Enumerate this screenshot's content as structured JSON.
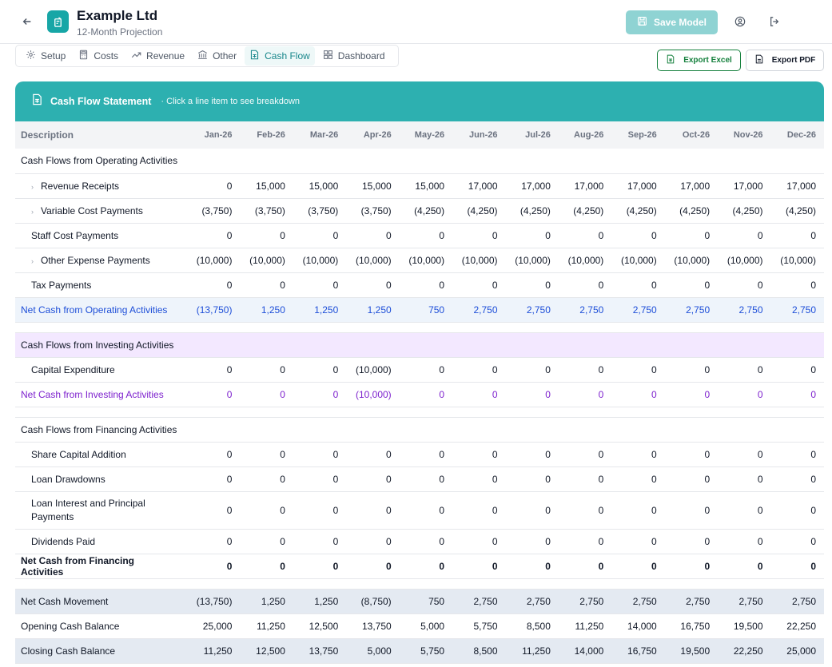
{
  "header": {
    "title": "Example Ltd",
    "subtitle": "12-Month Projection",
    "save_label": "Save Model"
  },
  "tabs": [
    {
      "label": "Setup",
      "icon": "gear-icon"
    },
    {
      "label": "Costs",
      "icon": "calculator-icon"
    },
    {
      "label": "Revenue",
      "icon": "trend-icon"
    },
    {
      "label": "Other",
      "icon": "bank-icon"
    },
    {
      "label": "Cash Flow",
      "icon": "spreadsheet-icon",
      "active": true
    },
    {
      "label": "Dashboard",
      "icon": "grid-icon"
    }
  ],
  "exports": {
    "excel": "Export Excel",
    "pdf": "Export PDF"
  },
  "card": {
    "title": "Cash Flow Statement",
    "hint": "· Click a line item to see breakdown"
  },
  "table": {
    "desc_header": "Description",
    "months": [
      "Jan-26",
      "Feb-26",
      "Mar-26",
      "Apr-26",
      "May-26",
      "Jun-26",
      "Jul-26",
      "Aug-26",
      "Sep-26",
      "Oct-26",
      "Nov-26",
      "Dec-26"
    ],
    "operating": {
      "title": "Cash Flows from Operating Activities",
      "rows": [
        {
          "label": "Revenue Receipts",
          "expandable": true,
          "values": [
            "0",
            "15,000",
            "15,000",
            "15,000",
            "15,000",
            "17,000",
            "17,000",
            "17,000",
            "17,000",
            "17,000",
            "17,000",
            "17,000"
          ]
        },
        {
          "label": "Variable Cost Payments",
          "expandable": true,
          "values": [
            "(3,750)",
            "(3,750)",
            "(3,750)",
            "(3,750)",
            "(4,250)",
            "(4,250)",
            "(4,250)",
            "(4,250)",
            "(4,250)",
            "(4,250)",
            "(4,250)",
            "(4,250)"
          ]
        },
        {
          "label": "Staff Cost Payments",
          "expandable": false,
          "values": [
            "0",
            "0",
            "0",
            "0",
            "0",
            "0",
            "0",
            "0",
            "0",
            "0",
            "0",
            "0"
          ]
        },
        {
          "label": "Other Expense Payments",
          "expandable": true,
          "values": [
            "(10,000)",
            "(10,000)",
            "(10,000)",
            "(10,000)",
            "(10,000)",
            "(10,000)",
            "(10,000)",
            "(10,000)",
            "(10,000)",
            "(10,000)",
            "(10,000)",
            "(10,000)"
          ]
        },
        {
          "label": "Tax Payments",
          "expandable": false,
          "values": [
            "0",
            "0",
            "0",
            "0",
            "0",
            "0",
            "0",
            "0",
            "0",
            "0",
            "0",
            "0"
          ]
        }
      ],
      "net": {
        "label": "Net Cash from Operating Activities",
        "values": [
          "(13,750)",
          "1,250",
          "1,250",
          "1,250",
          "750",
          "2,750",
          "2,750",
          "2,750",
          "2,750",
          "2,750",
          "2,750",
          "2,750"
        ]
      }
    },
    "investing": {
      "title": "Cash Flows from Investing Activities",
      "rows": [
        {
          "label": "Capital Expenditure",
          "values": [
            "0",
            "0",
            "0",
            "(10,000)",
            "0",
            "0",
            "0",
            "0",
            "0",
            "0",
            "0",
            "0"
          ]
        }
      ],
      "net": {
        "label": "Net Cash from Investing Activities",
        "values": [
          "0",
          "0",
          "0",
          "(10,000)",
          "0",
          "0",
          "0",
          "0",
          "0",
          "0",
          "0",
          "0"
        ]
      }
    },
    "financing": {
      "title": "Cash Flows from Financing Activities",
      "rows": [
        {
          "label": "Share Capital Addition",
          "values": [
            "0",
            "0",
            "0",
            "0",
            "0",
            "0",
            "0",
            "0",
            "0",
            "0",
            "0",
            "0"
          ]
        },
        {
          "label": "Loan Drawdowns",
          "values": [
            "0",
            "0",
            "0",
            "0",
            "0",
            "0",
            "0",
            "0",
            "0",
            "0",
            "0",
            "0"
          ]
        },
        {
          "label": "Loan Interest and Principal Payments",
          "values": [
            "0",
            "0",
            "0",
            "0",
            "0",
            "0",
            "0",
            "0",
            "0",
            "0",
            "0",
            "0"
          ]
        },
        {
          "label": "Dividends Paid",
          "values": [
            "0",
            "0",
            "0",
            "0",
            "0",
            "0",
            "0",
            "0",
            "0",
            "0",
            "0",
            "0"
          ]
        }
      ],
      "net": {
        "label": "Net Cash from Financing Activities",
        "values": [
          "0",
          "0",
          "0",
          "0",
          "0",
          "0",
          "0",
          "0",
          "0",
          "0",
          "0",
          "0"
        ]
      }
    },
    "movement": {
      "label": "Net Cash Movement",
      "values": [
        "(13,750)",
        "1,250",
        "1,250",
        "(8,750)",
        "750",
        "2,750",
        "2,750",
        "2,750",
        "2,750",
        "2,750",
        "2,750",
        "2,750"
      ]
    },
    "opening": {
      "label": "Opening Cash Balance",
      "values": [
        "25,000",
        "11,250",
        "12,500",
        "13,750",
        "5,000",
        "5,750",
        "8,500",
        "11,250",
        "14,000",
        "16,750",
        "19,500",
        "22,250"
      ]
    },
    "closing": {
      "label": "Closing Cash Balance",
      "values": [
        "11,250",
        "12,500",
        "13,750",
        "5,000",
        "5,750",
        "8,500",
        "11,250",
        "14,000",
        "16,750",
        "19,500",
        "22,250",
        "25,000"
      ]
    }
  }
}
